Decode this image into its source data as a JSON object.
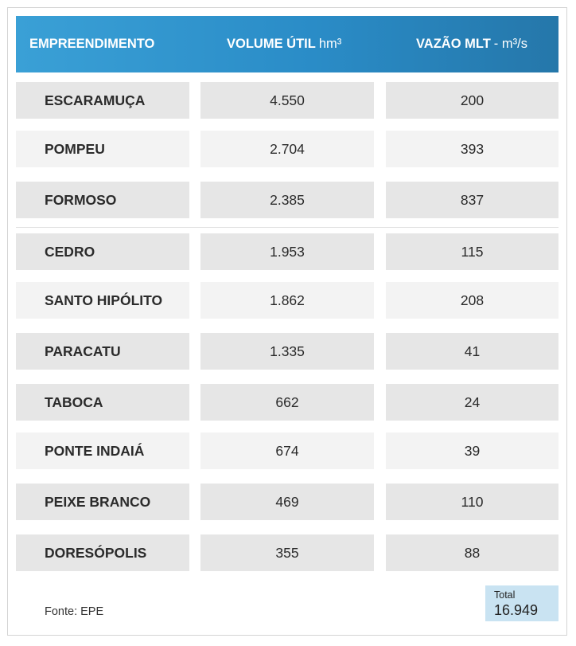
{
  "header": {
    "col1": "EMPREENDIMENTO",
    "col2_title": "VOLUME ÚTIL",
    "col2_unit": "hm³",
    "col3_title": "VAZÃO MLT",
    "col3_unit": "- m³/s"
  },
  "rows": [
    {
      "name": "ESCARAMUÇA",
      "volume": "4.550",
      "vazao": "200"
    },
    {
      "name": "POMPEU",
      "volume": "2.704",
      "vazao": "393"
    },
    {
      "name": "FORMOSO",
      "volume": "2.385",
      "vazao": "837"
    },
    {
      "name": "CEDRO",
      "volume": "1.953",
      "vazao": "115"
    },
    {
      "name": "SANTO HIPÓLITO",
      "volume": "1.862",
      "vazao": "208"
    },
    {
      "name": "PARACATU",
      "volume": "1.335",
      "vazao": "41"
    },
    {
      "name": "TABOCA",
      "volume": "662",
      "vazao": "24"
    },
    {
      "name": "PONTE INDAIÁ",
      "volume": "674",
      "vazao": "39"
    },
    {
      "name": "PEIXE BRANCO",
      "volume": "469",
      "vazao": "110"
    },
    {
      "name": "DORESÓPOLIS",
      "volume": "355",
      "vazao": "88"
    }
  ],
  "footer": {
    "source": "Fonte: EPE",
    "total_label": "Total",
    "total_value": "16.949"
  },
  "colors": {
    "header_gradient_start": "#3aa0d6",
    "header_gradient_end": "#2577aa",
    "row_dark": "#e6e6e6",
    "row_light": "#f3f3f3",
    "total_box": "#c9e3f2"
  }
}
